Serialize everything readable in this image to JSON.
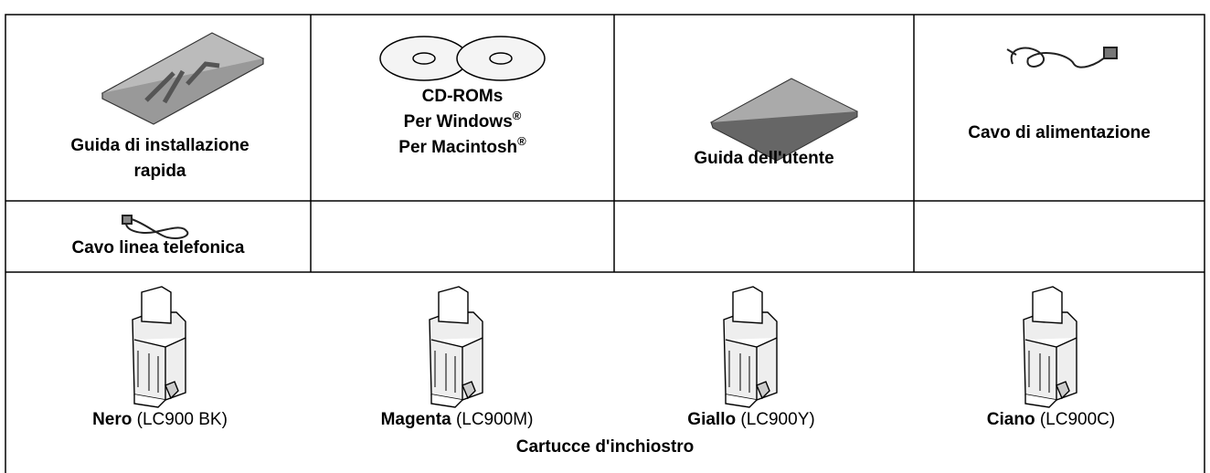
{
  "items": [
    {
      "label": "Guida di installazione rapida"
    },
    {
      "title": "CD-ROMs",
      "lines": [
        {
          "text": "Per Windows",
          "sup": "®"
        },
        {
          "text": "Per Macintosh",
          "sup": "®"
        }
      ]
    },
    {
      "label": "Guida dell'utente"
    },
    {
      "label": "Cavo di alimentazione"
    },
    {
      "label": "Cavo linea telefonica"
    }
  ],
  "cartridges": [
    {
      "color": "Nero",
      "code": "(LC900 BK)"
    },
    {
      "color": "Magenta",
      "code": "(LC900M)"
    },
    {
      "color": "Giallo",
      "code": "(LC900Y)"
    },
    {
      "color": "Ciano",
      "code": "(LC900C)"
    }
  ],
  "cartridges_caption": "Cartucce d'inchiostro"
}
